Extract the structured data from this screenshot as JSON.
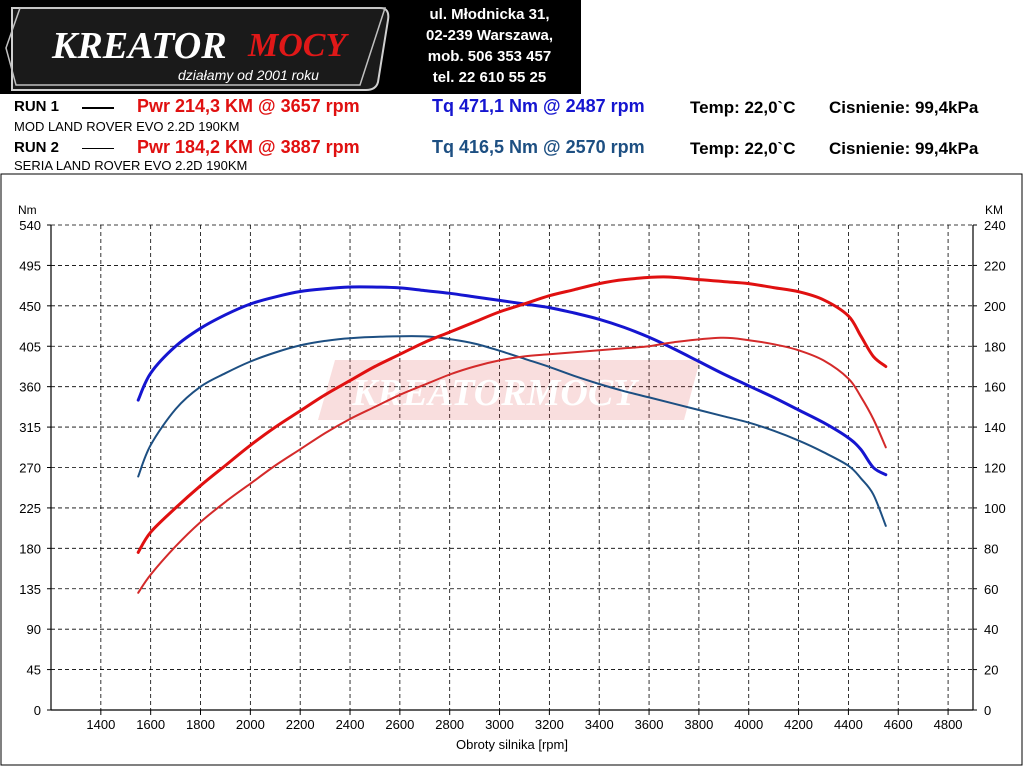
{
  "header": {
    "logo_text_1": "KREATOR",
    "logo_text_2": "MOCY",
    "logo_tagline": "działamy od 2001 roku",
    "address_lines": [
      "ul. Młodnicka 31,",
      "02-239  Warszawa,",
      "mob.  506 353 457",
      "tel.  22 610 55 25"
    ]
  },
  "runs": [
    {
      "label": "RUN 1",
      "desc": "MOD LAND ROVER EVO 2.2D 190KM",
      "pwr": "Pwr  214,3 KM @ 3657 rpm",
      "tq": "Tq 471,1 Nm @ 2487 rpm",
      "temp": "Temp: 22,0`C",
      "press": "Cisnienie: 99,4kPa"
    },
    {
      "label": "RUN 2",
      "desc": "SERIA LAND ROVER EVO 2.2D 190KM",
      "pwr": "Pwr  184,2 KM @ 3887 rpm",
      "tq": "Tq 416,5 Nm @ 2570 rpm",
      "temp": "Temp: 22,0`C",
      "press": "Cisnienie: 99,4kPa"
    }
  ],
  "colors": {
    "power_run1": "#e01010",
    "power_run2": "#d42a2a",
    "torque_run1": "#1515d0",
    "torque_run2": "#1d4f82"
  },
  "chart_data": {
    "type": "line",
    "xlabel": "Obroty silnika [rpm]",
    "ylabel_left": "Nm",
    "ylabel_right": "KM",
    "xlim": [
      1200,
      4900
    ],
    "ylim_left": [
      0,
      540
    ],
    "ylim_right": [
      0,
      240
    ],
    "xticks": [
      1400,
      1600,
      1800,
      2000,
      2200,
      2400,
      2600,
      2800,
      3000,
      3200,
      3400,
      3600,
      3800,
      4000,
      4200,
      4400,
      4600,
      4800
    ],
    "yticks_left": [
      0,
      45,
      90,
      135,
      180,
      225,
      270,
      315,
      360,
      405,
      450,
      495,
      540
    ],
    "yticks_right": [
      0,
      20,
      40,
      60,
      80,
      100,
      120,
      140,
      160,
      180,
      200,
      220,
      240
    ],
    "grid": true,
    "watermark": "KREATORMOCY",
    "series": [
      {
        "name": "Tq RUN 1",
        "axis": "left",
        "color": "#1515d0",
        "width": 3,
        "x": [
          1550,
          1600,
          1700,
          1800,
          1900,
          2000,
          2100,
          2200,
          2300,
          2400,
          2487,
          2600,
          2700,
          2800,
          2900,
          3000,
          3100,
          3200,
          3300,
          3400,
          3500,
          3600,
          3700,
          3800,
          3900,
          4000,
          4100,
          4200,
          4300,
          4400,
          4450,
          4500,
          4550
        ],
        "y": [
          345,
          375,
          405,
          425,
          440,
          452,
          460,
          466,
          469,
          471,
          471,
          470,
          467,
          464,
          460,
          456,
          452,
          448,
          442,
          435,
          426,
          415,
          402,
          388,
          374,
          361,
          348,
          334,
          320,
          303,
          290,
          270,
          262
        ]
      },
      {
        "name": "Tq RUN 2",
        "axis": "left",
        "color": "#1d4f82",
        "width": 2,
        "x": [
          1550,
          1600,
          1700,
          1800,
          1900,
          2000,
          2100,
          2200,
          2300,
          2400,
          2570,
          2700,
          2800,
          2900,
          3000,
          3100,
          3200,
          3300,
          3400,
          3500,
          3600,
          3700,
          3800,
          3900,
          4000,
          4100,
          4200,
          4300,
          4400,
          4450,
          4500,
          4550
        ],
        "y": [
          260,
          295,
          335,
          360,
          375,
          388,
          398,
          406,
          411,
          414,
          416,
          416,
          413,
          408,
          400,
          391,
          382,
          372,
          363,
          355,
          348,
          341,
          334,
          327,
          320,
          311,
          300,
          287,
          272,
          258,
          240,
          205
        ]
      },
      {
        "name": "Pwr RUN 1",
        "axis": "right",
        "color": "#e01010",
        "width": 3,
        "x": [
          1550,
          1600,
          1700,
          1800,
          1900,
          2000,
          2100,
          2200,
          2300,
          2400,
          2500,
          2600,
          2700,
          2800,
          2900,
          3000,
          3100,
          3200,
          3300,
          3400,
          3500,
          3657,
          3800,
          3900,
          4000,
          4100,
          4200,
          4300,
          4400,
          4450,
          4500,
          4550
        ],
        "y": [
          78,
          88,
          100,
          111,
          121,
          131,
          140,
          148,
          156,
          163,
          170,
          176,
          182,
          187,
          192,
          197,
          201,
          205,
          208,
          211,
          213,
          214.3,
          213,
          212,
          211,
          209,
          207,
          203,
          195,
          185,
          175,
          170
        ]
      },
      {
        "name": "Pwr RUN 2",
        "axis": "right",
        "color": "#d42a2a",
        "width": 2,
        "x": [
          1550,
          1600,
          1700,
          1800,
          1900,
          2000,
          2100,
          2200,
          2300,
          2400,
          2500,
          2600,
          2700,
          2800,
          2900,
          3000,
          3100,
          3200,
          3300,
          3400,
          3500,
          3600,
          3700,
          3887,
          4000,
          4100,
          4200,
          4300,
          4400,
          4450,
          4500,
          4550
        ],
        "y": [
          58,
          67,
          81,
          93,
          103,
          112,
          121,
          129,
          137,
          144,
          150,
          156,
          161,
          166,
          170,
          173,
          175,
          176,
          177,
          178,
          179,
          180,
          182,
          184.2,
          183,
          181,
          178,
          173,
          164,
          155,
          144,
          130
        ]
      }
    ]
  }
}
